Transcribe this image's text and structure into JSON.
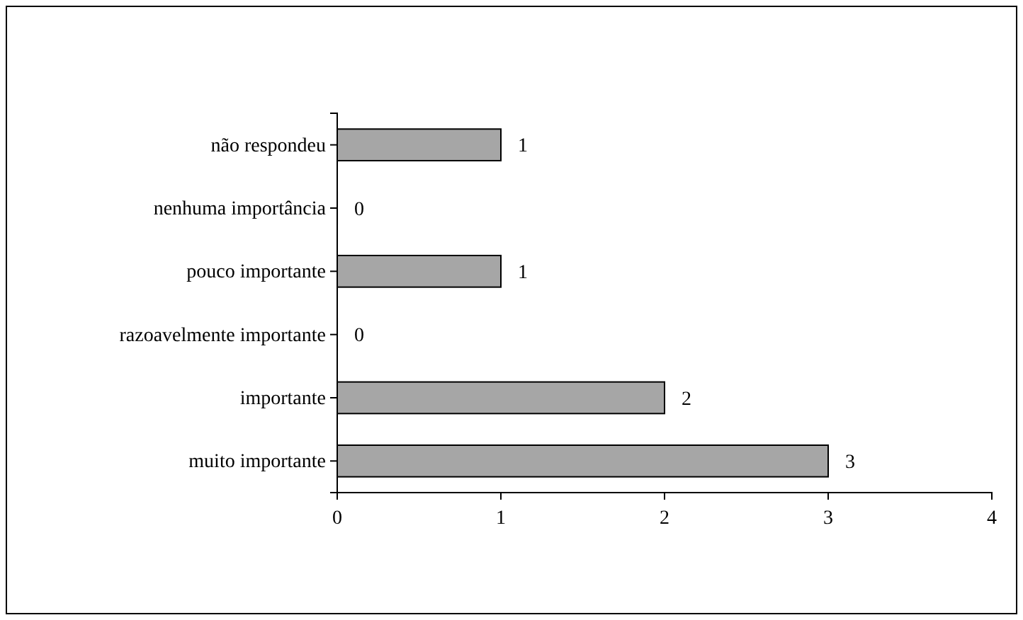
{
  "chart_data": {
    "type": "bar",
    "orientation": "horizontal",
    "categories": [
      "não respondeu",
      "nenhuma importância",
      "pouco importante",
      "razoavelmente importante",
      "importante",
      "muito importante"
    ],
    "values": [
      1,
      0,
      1,
      0,
      2,
      3
    ],
    "color": "#a6a6a6",
    "xlim": [
      0,
      4
    ],
    "xticks": [
      0,
      1,
      2,
      3,
      4
    ],
    "data_labels": true
  }
}
